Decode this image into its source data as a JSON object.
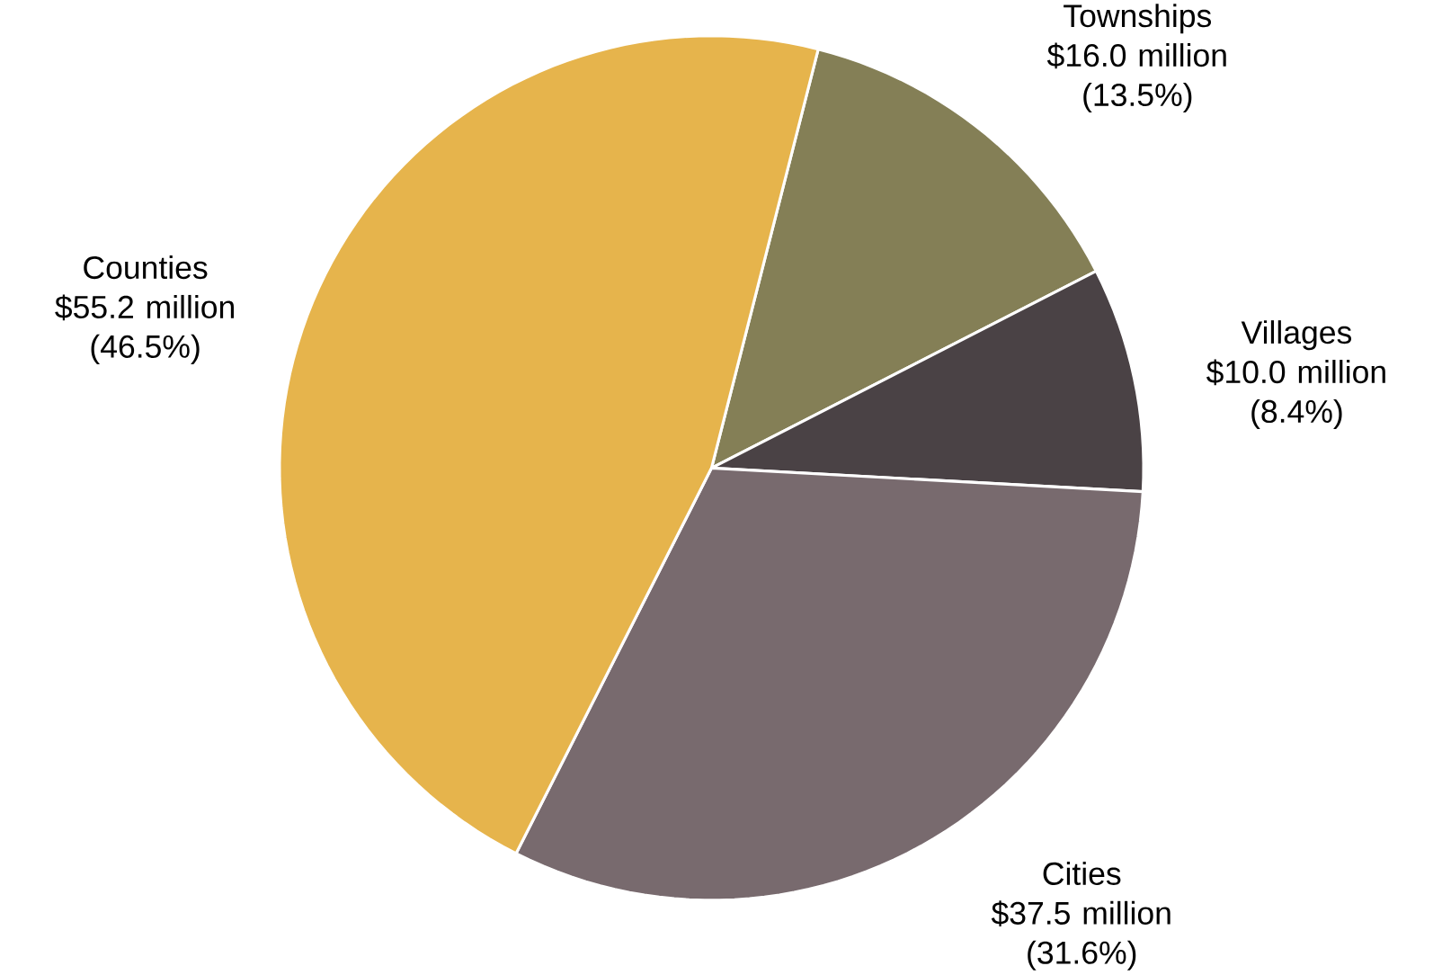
{
  "chart_data": {
    "type": "pie",
    "categories": [
      "Townships",
      "Villages",
      "Cities",
      "Counties"
    ],
    "values": [
      13.5,
      8.4,
      31.6,
      46.5
    ],
    "value_labels": [
      "$16.0 million (13.5%)",
      "$10.0 million (8.4%)",
      "$37.5 million (31.6%)",
      "$55.2 million (46.5%)"
    ],
    "colors": [
      "#847f56",
      "#4a4245",
      "#786a6e",
      "#e6b44c"
    ]
  }
}
